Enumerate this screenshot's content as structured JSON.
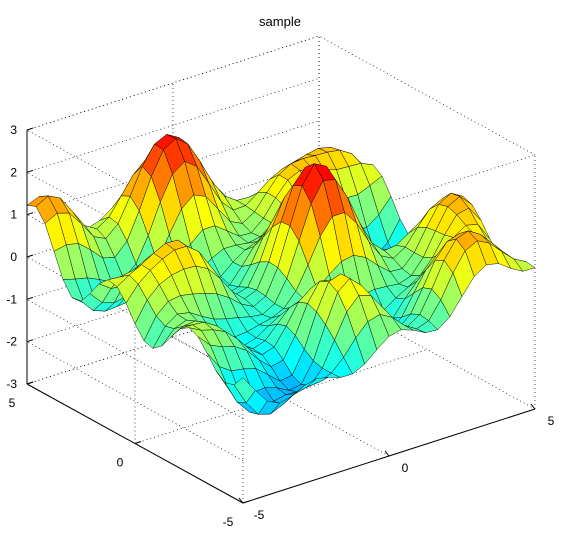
{
  "chart_data": {
    "type": "surface",
    "title": "sample",
    "xlabel": "",
    "ylabel": "",
    "zlabel": "",
    "xlim": [
      -5,
      5
    ],
    "ylim": [
      -5,
      5
    ],
    "zlim": [
      -3,
      3
    ],
    "xticks": [
      "-5",
      "0",
      "5"
    ],
    "yticks": [
      "-5",
      "0",
      "5"
    ],
    "zticks": [
      "-3",
      "-2",
      "-1",
      "0",
      "1",
      "2",
      "3"
    ],
    "grid": true,
    "colormap": "jet",
    "mesh": {
      "x": [
        -5,
        -4.583,
        -4.167,
        -3.75,
        -3.333,
        -2.917,
        -2.5,
        -2.083,
        -1.667,
        -1.25,
        -0.833,
        -0.417,
        0,
        0.417,
        0.833,
        1.25,
        1.667,
        2.083,
        2.5,
        2.917,
        3.333,
        3.75,
        4.167,
        4.583,
        5
      ],
      "y": [
        -5,
        -4.583,
        -4.167,
        -3.75,
        -3.333,
        -2.917,
        -2.5,
        -2.083,
        -1.667,
        -1.25,
        -0.833,
        -0.417,
        0,
        0.417,
        0.833,
        1.25,
        1.667,
        2.083,
        2.5,
        2.917,
        3.333,
        3.75,
        4.167,
        4.583,
        5
      ]
    },
    "z_peaks": [
      {
        "x": -4.2,
        "y": 4.2,
        "z": 1.9
      },
      {
        "x": 0.0,
        "y": 4.5,
        "z": 2.9
      },
      {
        "x": 0.5,
        "y": -1.0,
        "z": 2.2
      },
      {
        "x": 4.5,
        "y": -2.5,
        "z": 2.1
      },
      {
        "x": 1.5,
        "y": 2.0,
        "z": 2.0
      }
    ],
    "z_min": {
      "x": -2.0,
      "y": -3.5,
      "z": -2.6
    }
  }
}
